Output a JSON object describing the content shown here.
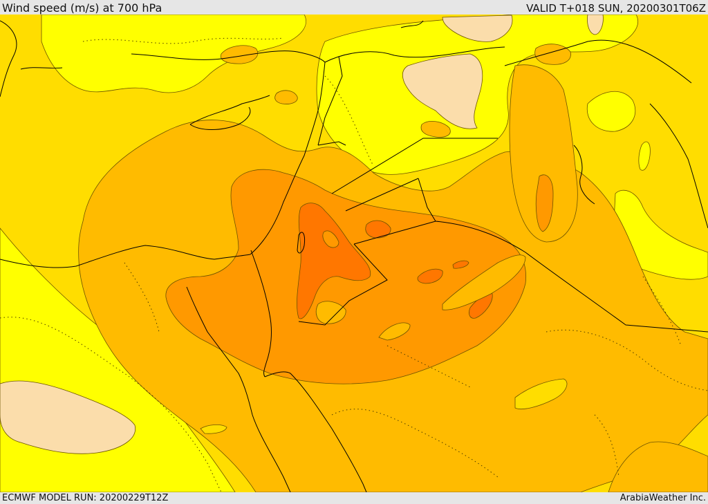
{
  "header": {
    "title": "Wind speed (m/s) at 700 hPa",
    "valid": "VALID T+018 SUN, 20200301T06Z"
  },
  "footer": {
    "model_run": "ECMWF MODEL RUN: 20200229T12Z",
    "credit": "ArabiaWeather Inc."
  },
  "map": {
    "field": "wind speed at 700 hPa",
    "fill_levels": {
      "lowest": "#fbddab",
      "level_1": "#ffff00",
      "level_2": "#ffdd00",
      "level_3": "#ffbb00",
      "level_4": "#ff9900",
      "level_5": "#ff7700"
    },
    "contour_color": "#6b5200",
    "border_color": "#000000"
  }
}
